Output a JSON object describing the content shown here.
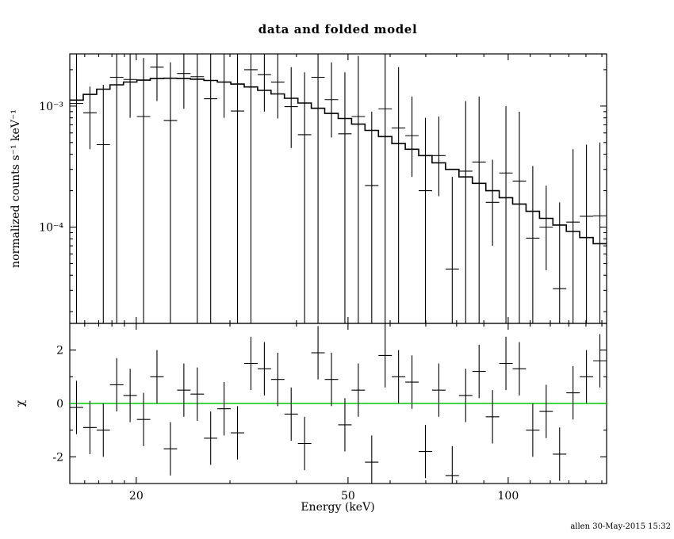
{
  "page": {
    "title": "data and folded model",
    "footer": "allen 30-May-2015 15:32",
    "xlabel": "Energy (keV)",
    "ylabel_top": "normalized counts s⁻¹ keV⁻¹",
    "ylabel_bottom": "χ"
  },
  "colors": {
    "foreground": "#000000",
    "model_line": "#000000",
    "zero_line": "#00cc00",
    "background": "#ffffff"
  },
  "chart_data": [
    {
      "type": "scatter",
      "panel": "top",
      "title": "data and folded model",
      "xlabel": "Energy (keV)",
      "ylabel": "normalized counts s⁻¹ keV⁻¹",
      "xscale": "log",
      "yscale": "log",
      "xlim": [
        15,
        153.09
      ],
      "ylim": [
        1.6e-05,
        0.0027
      ],
      "xticks_major": [
        {
          "v": 20,
          "label": "20"
        },
        {
          "v": 50,
          "label": "50"
        },
        {
          "v": 100,
          "label": "100"
        }
      ],
      "xticks_minor": [
        16,
        17,
        18,
        19,
        30,
        40,
        60,
        70,
        80,
        90,
        110,
        120,
        130,
        140,
        150
      ],
      "yticks_major": [
        {
          "v": 0.001,
          "label": "10⁻³"
        },
        {
          "v": 0.0001,
          "label": "10⁻⁴"
        }
      ],
      "yticks_minor": [
        2e-05,
        3e-05,
        4e-05,
        5e-05,
        6e-05,
        7e-05,
        8e-05,
        9e-05,
        0.0002,
        0.0003,
        0.0004,
        0.0005,
        0.0006,
        0.0007,
        0.0008,
        0.0009,
        0.002
      ],
      "bin_edges": [
        15.0,
        15.9,
        16.85,
        17.85,
        18.92,
        20.05,
        21.25,
        22.52,
        23.87,
        25.3,
        26.81,
        28.41,
        30.11,
        31.91,
        33.82,
        35.84,
        37.98,
        40.25,
        42.66,
        45.21,
        47.92,
        50.78,
        53.82,
        57.04,
        60.45,
        64.06,
        67.89,
        71.95,
        76.25,
        80.81,
        85.65,
        90.77,
        96.2,
        101.95,
        108.04,
        114.5,
        121.35,
        128.61,
        136.3,
        144.45,
        153.09
      ],
      "model_values": [
        0.00112,
        0.00125,
        0.00138,
        0.0015,
        0.00158,
        0.00164,
        0.00169,
        0.0017,
        0.00169,
        0.00167,
        0.00163,
        0.00158,
        0.00152,
        0.00144,
        0.00135,
        0.00126,
        0.00116,
        0.00106,
        0.00096,
        0.00087,
        0.00079,
        0.00071,
        0.00063,
        0.00056,
        0.00049,
        0.00044,
        0.00039,
        0.00034,
        0.0003,
        0.00026,
        0.00023,
        0.0002,
        0.000175,
        0.000155,
        0.000135,
        0.000118,
        0.000104,
        9.2e-05,
        8.2e-05,
        7.3e-05
      ],
      "points": [
        {
          "y": 0.00105,
          "lo": 1e-06,
          "hi": 0.00315
        },
        {
          "y": 0.00088,
          "lo": 0.00044,
          "hi": 0.00145
        },
        {
          "y": 0.00048,
          "lo": 1e-06,
          "hi": 0.0015
        },
        {
          "y": 0.00173,
          "lo": 1e-06,
          "hi": 0.005
        },
        {
          "y": 0.00166,
          "lo": 0.0008,
          "hi": 0.0034
        },
        {
          "y": 0.00082,
          "lo": 1e-06,
          "hi": 0.0025
        },
        {
          "y": 0.0021,
          "lo": 0.0011,
          "hi": 0.004
        },
        {
          "y": 0.00076,
          "lo": 1e-06,
          "hi": 0.0023
        },
        {
          "y": 0.00186,
          "lo": 0.00095,
          "hi": 0.0036
        },
        {
          "y": 0.00175,
          "lo": 1e-06,
          "hi": 0.0052
        },
        {
          "y": 0.00115,
          "lo": 1e-06,
          "hi": 0.0035
        },
        {
          "y": 0.00158,
          "lo": 0.0008,
          "hi": 0.0031
        },
        {
          "y": 0.00091,
          "lo": 1e-06,
          "hi": 0.0028
        },
        {
          "y": 0.002,
          "lo": 1e-06,
          "hi": 0.006
        },
        {
          "y": 0.00182,
          "lo": 0.0009,
          "hi": 0.0037
        },
        {
          "y": 0.00158,
          "lo": 0.00079,
          "hi": 0.0031
        },
        {
          "y": 0.00099,
          "lo": 0.00045,
          "hi": 0.0021
        },
        {
          "y": 0.00058,
          "lo": 1e-06,
          "hi": 0.0019
        },
        {
          "y": 0.00173,
          "lo": 1e-06,
          "hi": 0.0055
        },
        {
          "y": 0.00113,
          "lo": 0.00055,
          "hi": 0.0023
        },
        {
          "y": 0.00059,
          "lo": 1e-06,
          "hi": 0.0019
        },
        {
          "y": 0.00082,
          "lo": 1e-06,
          "hi": 0.0026
        },
        {
          "y": 0.00022,
          "lo": 1e-06,
          "hi": 0.0009
        },
        {
          "y": 0.00095,
          "lo": 1e-06,
          "hi": 0.003
        },
        {
          "y": 0.00066,
          "lo": 1e-06,
          "hi": 0.0021
        },
        {
          "y": 0.00057,
          "lo": 0.00026,
          "hi": 0.0012
        },
        {
          "y": 0.0002,
          "lo": 1e-06,
          "hi": 0.0008
        },
        {
          "y": 0.00039,
          "lo": 0.00018,
          "hi": 0.00082
        },
        {
          "y": 4.5e-05,
          "lo": 1e-06,
          "hi": 0.00026
        },
        {
          "y": 0.00029,
          "lo": 1e-06,
          "hi": 0.0011
        },
        {
          "y": 0.000345,
          "lo": 1e-06,
          "hi": 0.0012
        },
        {
          "y": 0.00016,
          "lo": 7e-05,
          "hi": 0.00036
        },
        {
          "y": 0.00028,
          "lo": 1e-06,
          "hi": 0.001
        },
        {
          "y": 0.00024,
          "lo": 1e-06,
          "hi": 0.0009
        },
        {
          "y": 8.1e-05,
          "lo": 1e-06,
          "hi": 0.00032
        },
        {
          "y": 0.0001,
          "lo": 4.4e-05,
          "hi": 0.00022
        },
        {
          "y": 3.1e-05,
          "lo": 1e-06,
          "hi": 0.00016
        },
        {
          "y": 0.00011,
          "lo": 1e-06,
          "hi": 0.00044
        },
        {
          "y": 0.000123,
          "lo": 1e-06,
          "hi": 0.00048
        },
        {
          "y": 0.000124,
          "lo": 1e-06,
          "hi": 0.0005
        }
      ]
    },
    {
      "type": "scatter",
      "panel": "bottom",
      "ylabel": "χ",
      "xscale": "log",
      "yscale": "linear",
      "xlim": [
        15,
        153.09
      ],
      "ylim": [
        -3,
        3
      ],
      "yticks_major": [
        {
          "v": 2,
          "label": "2"
        },
        {
          "v": 0,
          "label": "0"
        },
        {
          "v": -2,
          "label": "-2"
        }
      ],
      "yticks_minor": [
        -3,
        -1,
        1,
        3
      ],
      "zero_line": 0,
      "points": [
        {
          "v": -0.15,
          "err": 1
        },
        {
          "v": -0.9,
          "err": 1
        },
        {
          "v": -1.0,
          "err": 1
        },
        {
          "v": 0.7,
          "err": 1
        },
        {
          "v": 0.3,
          "err": 1
        },
        {
          "v": -0.6,
          "err": 1
        },
        {
          "v": 1.0,
          "err": 1
        },
        {
          "v": -1.7,
          "err": 1
        },
        {
          "v": 0.5,
          "err": 1
        },
        {
          "v": 0.35,
          "err": 1
        },
        {
          "v": -1.3,
          "err": 1
        },
        {
          "v": -0.2,
          "err": 1
        },
        {
          "v": -1.1,
          "err": 1
        },
        {
          "v": 1.5,
          "err": 1
        },
        {
          "v": 1.3,
          "err": 1
        },
        {
          "v": 0.9,
          "err": 1
        },
        {
          "v": -0.4,
          "err": 1
        },
        {
          "v": -1.5,
          "err": 1
        },
        {
          "v": 1.9,
          "err": 1
        },
        {
          "v": 0.9,
          "err": 1
        },
        {
          "v": -0.8,
          "err": 1
        },
        {
          "v": 0.5,
          "err": 1
        },
        {
          "v": -2.2,
          "err": 1
        },
        {
          "v": 1.8,
          "err": 1.2
        },
        {
          "v": 1.0,
          "err": 1
        },
        {
          "v": 0.8,
          "err": 1
        },
        {
          "v": -1.8,
          "err": 1
        },
        {
          "v": 0.5,
          "err": 1
        },
        {
          "v": -2.7,
          "err": 1.1
        },
        {
          "v": 0.3,
          "err": 1
        },
        {
          "v": 1.2,
          "err": 1
        },
        {
          "v": -0.5,
          "err": 1
        },
        {
          "v": 1.5,
          "err": 1
        },
        {
          "v": 1.3,
          "err": 1
        },
        {
          "v": -1.0,
          "err": 1
        },
        {
          "v": -0.3,
          "err": 1
        },
        {
          "v": -1.9,
          "err": 1
        },
        {
          "v": 0.4,
          "err": 1
        },
        {
          "v": 1.0,
          "err": 1
        },
        {
          "v": 1.6,
          "err": 1
        }
      ]
    }
  ]
}
